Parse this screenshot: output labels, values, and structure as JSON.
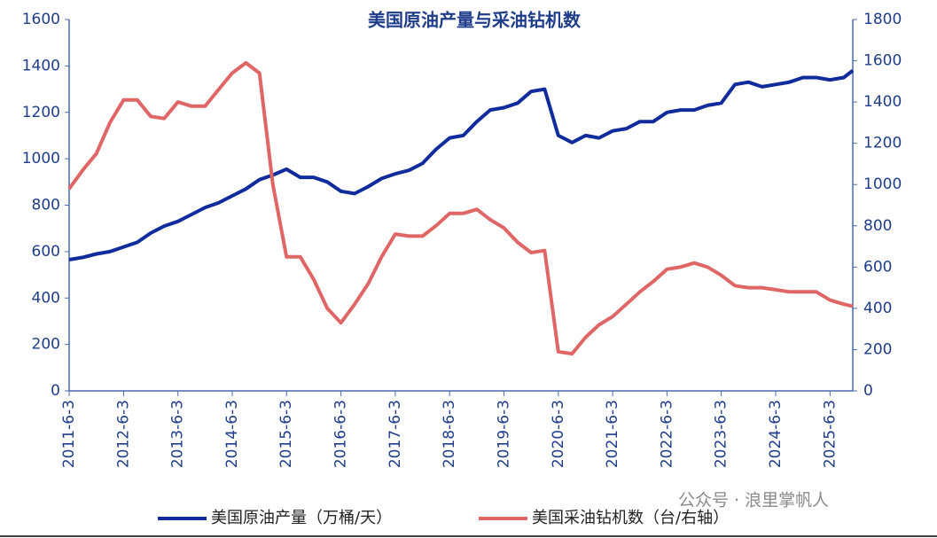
{
  "chart_data": {
    "type": "line",
    "title": "美国原油产量与采油钻机数",
    "x": [
      "2011-6-3",
      "2011-9-3",
      "2011-12-3",
      "2012-3-3",
      "2012-6-3",
      "2012-9-3",
      "2012-12-3",
      "2013-3-3",
      "2013-6-3",
      "2013-9-3",
      "2013-12-3",
      "2014-3-3",
      "2014-6-3",
      "2014-9-3",
      "2014-12-3",
      "2015-3-3",
      "2015-6-3",
      "2015-9-3",
      "2015-12-3",
      "2016-3-3",
      "2016-6-3",
      "2016-9-3",
      "2016-12-3",
      "2017-3-3",
      "2017-6-3",
      "2017-9-3",
      "2017-12-3",
      "2018-3-3",
      "2018-6-3",
      "2018-9-3",
      "2018-12-3",
      "2019-3-3",
      "2019-6-3",
      "2019-9-3",
      "2019-12-3",
      "2020-3-3",
      "2020-6-3",
      "2020-9-3",
      "2020-12-3",
      "2021-3-3",
      "2021-6-3",
      "2021-9-3",
      "2021-12-3",
      "2022-3-3",
      "2022-6-3",
      "2022-9-3",
      "2022-12-3",
      "2023-3-3",
      "2023-6-3",
      "2023-9-3",
      "2023-12-3",
      "2024-3-3",
      "2024-6-3",
      "2024-9-3",
      "2024-12-3",
      "2025-3-3",
      "2025-6-3",
      "2025-9-3",
      "2025-11-3"
    ],
    "series": [
      {
        "name": "美国原油产量（万桶/天）",
        "color": "#0f2b9c",
        "axis": "y",
        "values": [
          565,
          575,
          590,
          600,
          620,
          640,
          680,
          710,
          730,
          760,
          790,
          810,
          840,
          870,
          910,
          930,
          955,
          920,
          920,
          900,
          860,
          850,
          880,
          915,
          935,
          950,
          980,
          1040,
          1090,
          1100,
          1160,
          1210,
          1220,
          1240,
          1290,
          1300,
          1100,
          1070,
          1100,
          1090,
          1120,
          1130,
          1160,
          1160,
          1200,
          1210,
          1210,
          1230,
          1240,
          1320,
          1330,
          1310,
          1320,
          1330,
          1350,
          1350,
          1340,
          1350,
          1380
        ]
      },
      {
        "name": "美国采油钻机数（台/右轴）",
        "color": "#e06666",
        "axis": "y2",
        "values": [
          980,
          1070,
          1150,
          1300,
          1410,
          1410,
          1330,
          1320,
          1400,
          1380,
          1380,
          1460,
          1540,
          1590,
          1540,
          1000,
          650,
          650,
          540,
          400,
          330,
          420,
          520,
          650,
          760,
          750,
          750,
          800,
          860,
          860,
          880,
          830,
          790,
          720,
          670,
          680,
          190,
          180,
          260,
          320,
          360,
          420,
          480,
          530,
          590,
          600,
          620,
          600,
          560,
          510,
          500,
          500,
          490,
          480,
          480,
          480,
          440,
          420,
          410
        ]
      }
    ],
    "xlim": [
      "2011-6-3",
      "2025-11-3"
    ],
    "xticks": [
      "2011-6-3",
      "2012-6-3",
      "2013-6-3",
      "2014-6-3",
      "2015-6-3",
      "2016-6-3",
      "2017-6-3",
      "2018-6-3",
      "2019-6-3",
      "2020-6-3",
      "2021-6-3",
      "2022-6-3",
      "2023-6-3",
      "2024-6-3",
      "2025-6-3"
    ],
    "ylim": [
      0,
      1600
    ],
    "yticks": [
      0,
      200,
      400,
      600,
      800,
      1000,
      1200,
      1400,
      1600
    ],
    "y2lim": [
      0,
      1800
    ],
    "y2ticks": [
      0,
      200,
      400,
      600,
      800,
      1000,
      1200,
      1400,
      1600,
      1800
    ],
    "watermark": "公众号 · 浪里掌帆人"
  }
}
